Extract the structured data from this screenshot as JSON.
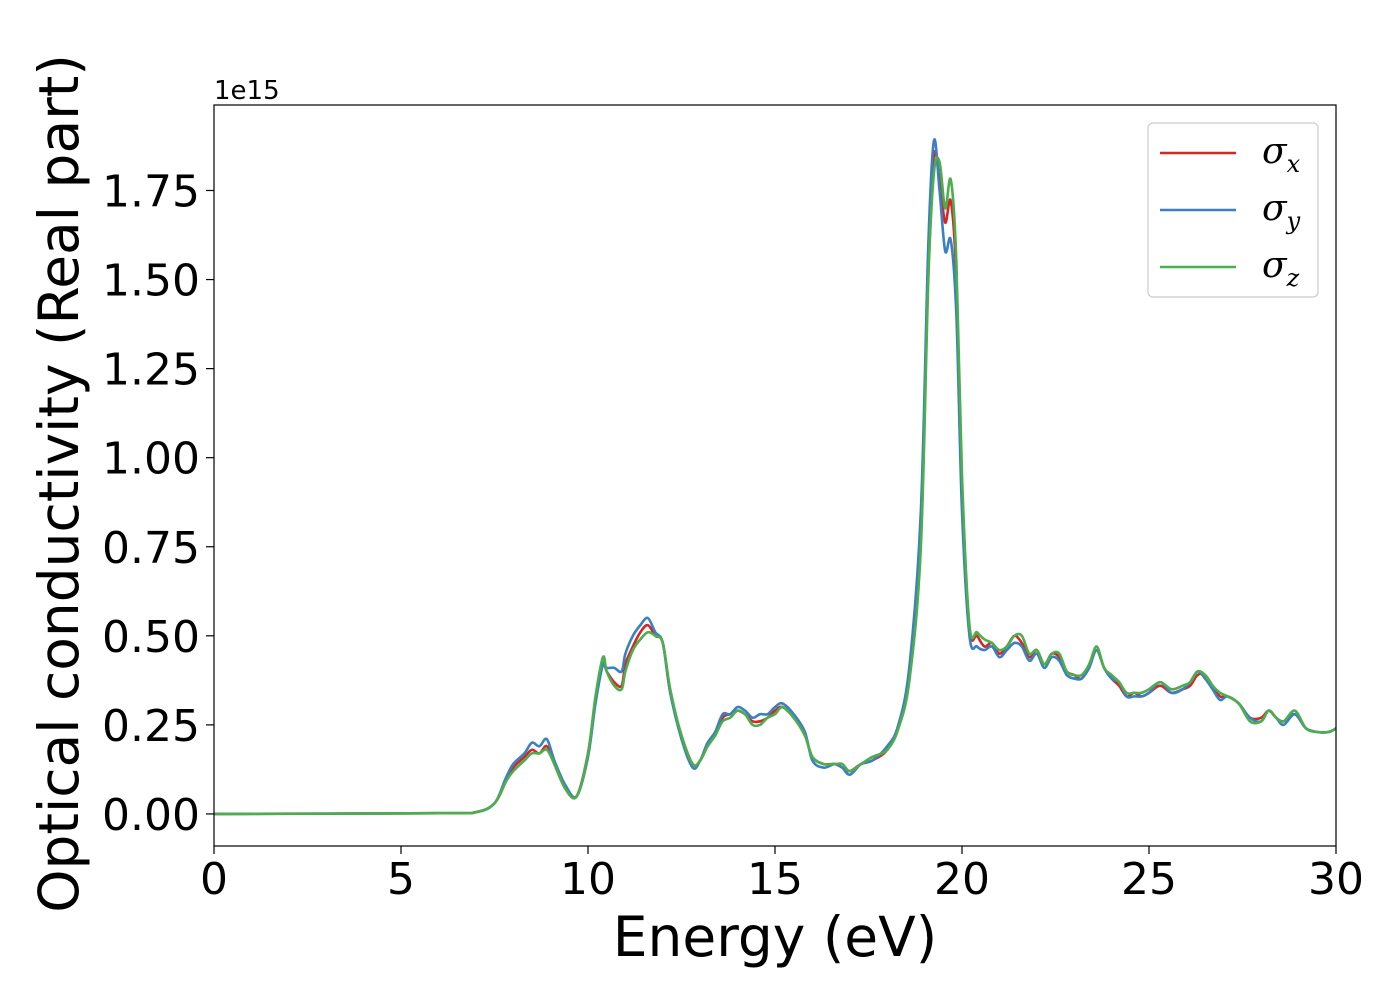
{
  "chart_data": {
    "type": "line",
    "title": "",
    "xlabel": "Energy (eV)",
    "ylabel": "Optical conductivity (Real part)",
    "y_offset_label": "1e15",
    "y_scale": 1000000000000000.0,
    "xlim": [
      0,
      30
    ],
    "ylim": [
      -0.09,
      1.99
    ],
    "xticks": [
      0,
      5,
      10,
      15,
      20,
      25,
      30
    ],
    "xtick_labels": [
      "0",
      "5",
      "10",
      "15",
      "20",
      "25",
      "30"
    ],
    "yticks": [
      0.0,
      0.25,
      0.5,
      0.75,
      1.0,
      1.25,
      1.5,
      1.75
    ],
    "ytick_labels": [
      "0.00",
      "0.25",
      "0.50",
      "0.75",
      "1.00",
      "1.25",
      "1.50",
      "1.75"
    ],
    "grid": false,
    "legend_position": "top-right",
    "series": [
      {
        "name": "σx",
        "symbol": "σ",
        "subscript": "x",
        "color": "#d62728",
        "x": [
          0,
          6,
          7,
          7.5,
          7.8,
          8.0,
          8.3,
          8.5,
          8.7,
          8.9,
          9.1,
          9.4,
          9.7,
          10.0,
          10.2,
          10.4,
          10.5,
          10.7,
          10.9,
          11.0,
          11.2,
          11.4,
          11.6,
          11.8,
          12.0,
          12.2,
          12.5,
          12.8,
          13.0,
          13.2,
          13.4,
          13.6,
          13.8,
          14.0,
          14.2,
          14.4,
          14.6,
          14.8,
          15.0,
          15.2,
          15.5,
          15.8,
          16.0,
          16.3,
          16.6,
          16.8,
          17.0,
          17.3,
          17.6,
          18.0,
          18.3,
          18.6,
          18.9,
          19.1,
          19.25,
          19.4,
          19.55,
          19.7,
          19.85,
          20.0,
          20.2,
          20.4,
          20.6,
          20.8,
          21.0,
          21.2,
          21.4,
          21.6,
          21.8,
          22.0,
          22.2,
          22.4,
          22.6,
          22.8,
          23.0,
          23.2,
          23.4,
          23.6,
          23.8,
          24.0,
          24.2,
          24.4,
          24.6,
          24.8,
          25.0,
          25.3,
          25.6,
          25.9,
          26.1,
          26.3,
          26.5,
          26.7,
          26.9,
          27.1,
          27.4,
          27.7,
          28.0,
          28.2,
          28.4,
          28.6,
          28.9,
          29.2,
          29.5,
          29.8,
          30
        ],
        "values": [
          0.0,
          0.002,
          0.005,
          0.03,
          0.09,
          0.13,
          0.16,
          0.18,
          0.17,
          0.19,
          0.14,
          0.07,
          0.05,
          0.17,
          0.32,
          0.42,
          0.4,
          0.37,
          0.36,
          0.42,
          0.47,
          0.51,
          0.53,
          0.5,
          0.48,
          0.34,
          0.22,
          0.14,
          0.15,
          0.2,
          0.22,
          0.27,
          0.28,
          0.29,
          0.28,
          0.26,
          0.26,
          0.27,
          0.29,
          0.3,
          0.27,
          0.22,
          0.16,
          0.14,
          0.14,
          0.13,
          0.12,
          0.14,
          0.15,
          0.18,
          0.25,
          0.4,
          0.78,
          1.55,
          1.85,
          1.78,
          1.66,
          1.72,
          1.5,
          0.9,
          0.52,
          0.5,
          0.47,
          0.48,
          0.45,
          0.47,
          0.5,
          0.48,
          0.44,
          0.46,
          0.42,
          0.45,
          0.44,
          0.4,
          0.39,
          0.38,
          0.42,
          0.46,
          0.41,
          0.38,
          0.36,
          0.33,
          0.34,
          0.33,
          0.34,
          0.36,
          0.34,
          0.35,
          0.36,
          0.39,
          0.39,
          0.36,
          0.33,
          0.33,
          0.31,
          0.27,
          0.27,
          0.29,
          0.27,
          0.26,
          0.28,
          0.24,
          0.23,
          0.23,
          0.24
        ]
      },
      {
        "name": "σy",
        "symbol": "σ",
        "subscript": "y",
        "color": "#3b7fc4",
        "x": [
          0,
          6,
          7,
          7.5,
          7.8,
          8.0,
          8.3,
          8.5,
          8.7,
          8.9,
          9.1,
          9.4,
          9.7,
          10.0,
          10.2,
          10.4,
          10.5,
          10.7,
          10.9,
          11.0,
          11.2,
          11.4,
          11.6,
          11.8,
          12.0,
          12.2,
          12.5,
          12.8,
          13.0,
          13.2,
          13.4,
          13.6,
          13.8,
          14.0,
          14.2,
          14.4,
          14.6,
          14.8,
          15.0,
          15.2,
          15.5,
          15.8,
          16.0,
          16.3,
          16.6,
          16.8,
          17.0,
          17.3,
          17.6,
          18.0,
          18.3,
          18.6,
          18.9,
          19.1,
          19.25,
          19.4,
          19.55,
          19.7,
          19.85,
          20.0,
          20.2,
          20.4,
          20.6,
          20.8,
          21.0,
          21.2,
          21.4,
          21.6,
          21.8,
          22.0,
          22.2,
          22.4,
          22.6,
          22.8,
          23.0,
          23.2,
          23.4,
          23.6,
          23.8,
          24.0,
          24.2,
          24.4,
          24.6,
          24.8,
          25.0,
          25.3,
          25.6,
          25.9,
          26.1,
          26.3,
          26.5,
          26.7,
          26.9,
          27.1,
          27.4,
          27.7,
          28.0,
          28.2,
          28.4,
          28.6,
          28.9,
          29.2,
          29.5,
          29.8,
          30
        ],
        "values": [
          0.0,
          0.002,
          0.005,
          0.03,
          0.1,
          0.14,
          0.17,
          0.2,
          0.19,
          0.21,
          0.15,
          0.08,
          0.05,
          0.16,
          0.31,
          0.42,
          0.41,
          0.41,
          0.4,
          0.45,
          0.5,
          0.53,
          0.55,
          0.51,
          0.48,
          0.34,
          0.21,
          0.13,
          0.15,
          0.2,
          0.23,
          0.28,
          0.28,
          0.3,
          0.29,
          0.27,
          0.28,
          0.28,
          0.3,
          0.31,
          0.28,
          0.23,
          0.15,
          0.13,
          0.14,
          0.13,
          0.11,
          0.14,
          0.15,
          0.19,
          0.25,
          0.42,
          0.85,
          1.6,
          1.89,
          1.75,
          1.58,
          1.61,
          1.4,
          0.85,
          0.5,
          0.47,
          0.46,
          0.47,
          0.44,
          0.46,
          0.48,
          0.47,
          0.43,
          0.45,
          0.41,
          0.44,
          0.43,
          0.39,
          0.38,
          0.38,
          0.41,
          0.46,
          0.41,
          0.38,
          0.37,
          0.33,
          0.33,
          0.33,
          0.34,
          0.37,
          0.34,
          0.35,
          0.37,
          0.4,
          0.38,
          0.35,
          0.32,
          0.33,
          0.31,
          0.27,
          0.26,
          0.29,
          0.27,
          0.25,
          0.28,
          0.24,
          0.23,
          0.23,
          0.24
        ]
      },
      {
        "name": "σz",
        "symbol": "σ",
        "subscript": "z",
        "color": "#4cae4c",
        "x": [
          0,
          6,
          7,
          7.5,
          7.8,
          8.0,
          8.3,
          8.5,
          8.7,
          8.9,
          9.1,
          9.4,
          9.7,
          10.0,
          10.2,
          10.4,
          10.5,
          10.7,
          10.9,
          11.0,
          11.2,
          11.4,
          11.6,
          11.8,
          12.0,
          12.2,
          12.5,
          12.8,
          13.0,
          13.2,
          13.4,
          13.6,
          13.8,
          14.0,
          14.2,
          14.4,
          14.6,
          14.8,
          15.0,
          15.2,
          15.5,
          15.8,
          16.0,
          16.3,
          16.6,
          16.8,
          17.0,
          17.3,
          17.6,
          18.0,
          18.3,
          18.6,
          18.9,
          19.1,
          19.25,
          19.4,
          19.55,
          19.7,
          19.85,
          20.0,
          20.2,
          20.4,
          20.6,
          20.8,
          21.0,
          21.2,
          21.4,
          21.6,
          21.8,
          22.0,
          22.2,
          22.4,
          22.6,
          22.8,
          23.0,
          23.2,
          23.4,
          23.6,
          23.8,
          24.0,
          24.2,
          24.4,
          24.6,
          24.8,
          25.0,
          25.3,
          25.6,
          25.9,
          26.1,
          26.3,
          26.5,
          26.7,
          26.9,
          27.1,
          27.4,
          27.7,
          28.0,
          28.2,
          28.4,
          28.6,
          28.9,
          29.2,
          29.5,
          29.8,
          30
        ],
        "values": [
          0.0,
          0.002,
          0.005,
          0.03,
          0.09,
          0.12,
          0.15,
          0.17,
          0.17,
          0.18,
          0.14,
          0.07,
          0.05,
          0.17,
          0.33,
          0.44,
          0.4,
          0.36,
          0.35,
          0.4,
          0.46,
          0.49,
          0.51,
          0.5,
          0.48,
          0.35,
          0.22,
          0.14,
          0.15,
          0.19,
          0.22,
          0.26,
          0.27,
          0.29,
          0.28,
          0.25,
          0.25,
          0.27,
          0.28,
          0.3,
          0.27,
          0.22,
          0.16,
          0.14,
          0.14,
          0.14,
          0.12,
          0.14,
          0.16,
          0.18,
          0.24,
          0.38,
          0.75,
          1.5,
          1.8,
          1.83,
          1.7,
          1.78,
          1.55,
          0.95,
          0.53,
          0.51,
          0.49,
          0.48,
          0.46,
          0.47,
          0.5,
          0.5,
          0.45,
          0.46,
          0.42,
          0.45,
          0.45,
          0.4,
          0.39,
          0.39,
          0.42,
          0.47,
          0.41,
          0.39,
          0.37,
          0.34,
          0.34,
          0.34,
          0.35,
          0.37,
          0.35,
          0.36,
          0.37,
          0.4,
          0.39,
          0.36,
          0.34,
          0.33,
          0.31,
          0.26,
          0.26,
          0.29,
          0.27,
          0.26,
          0.29,
          0.24,
          0.23,
          0.23,
          0.24
        ]
      }
    ]
  }
}
